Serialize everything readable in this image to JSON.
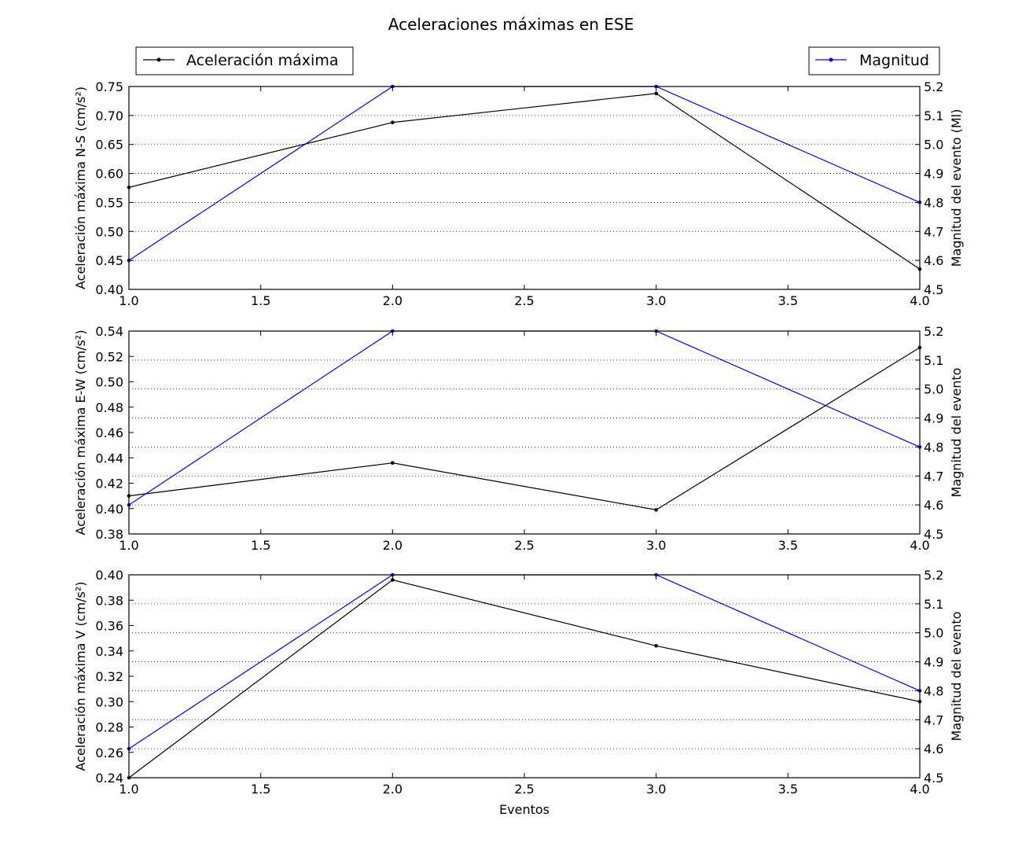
{
  "chart_data": {
    "type": "line",
    "title": "Aceleraciones máximas en ESE",
    "xlabel": "Eventos",
    "legend": [
      {
        "name": "Aceleración máxima",
        "color": "#000000",
        "placement": "top-left"
      },
      {
        "name": "Magnitud",
        "color": "#0000ff",
        "placement": "top-right"
      }
    ],
    "x": [
      1,
      2,
      3,
      4
    ],
    "xlim": [
      1.0,
      4.0
    ],
    "xticks": [
      "1.0",
      "1.5",
      "2.0",
      "2.5",
      "3.0",
      "3.5",
      "4.0"
    ],
    "grid": "dotted horizontal on right axis",
    "subplots": [
      {
        "ylabel": "Aceleración máxima N-S (cm/s²)",
        "ylabel_right": "Magnitud del evento (Ml)",
        "ylim": [
          0.4,
          0.75
        ],
        "ylim_right": [
          4.5,
          5.2
        ],
        "yticks": [
          "0.40",
          "0.45",
          "0.50",
          "0.55",
          "0.60",
          "0.65",
          "0.70",
          "0.75"
        ],
        "yticks_right": [
          "4.5",
          "4.6",
          "4.7",
          "4.8",
          "4.9",
          "5.0",
          "5.1",
          "5.2"
        ],
        "series": [
          {
            "name": "Aceleración máxima",
            "axis": "left",
            "color": "#000000",
            "values": [
              0.576,
              0.688,
              0.738,
              0.435
            ]
          },
          {
            "name": "Magnitud",
            "axis": "right",
            "color": "#0000ff",
            "values": [
              4.6,
              5.2,
              5.2,
              4.8
            ]
          }
        ]
      },
      {
        "ylabel": "Aceleración máxima E-W (cm/s²)",
        "ylabel_right": "Magnitud del evento",
        "ylim": [
          0.38,
          0.54
        ],
        "ylim_right": [
          4.5,
          5.2
        ],
        "yticks": [
          "0.38",
          "0.40",
          "0.42",
          "0.44",
          "0.46",
          "0.48",
          "0.50",
          "0.52",
          "0.54"
        ],
        "yticks_right": [
          "4.5",
          "4.6",
          "4.7",
          "4.8",
          "4.9",
          "5.0",
          "5.1",
          "5.2"
        ],
        "series": [
          {
            "name": "Aceleración máxima",
            "axis": "left",
            "color": "#000000",
            "values": [
              0.41,
              0.436,
              0.399,
              0.527
            ]
          },
          {
            "name": "Magnitud",
            "axis": "right",
            "color": "#0000ff",
            "values": [
              4.6,
              5.2,
              5.2,
              4.8
            ]
          }
        ]
      },
      {
        "ylabel": "Aceleración máxima V (cm/s²)",
        "ylabel_right": "Magnitud del evento",
        "ylim": [
          0.24,
          0.4
        ],
        "ylim_right": [
          4.5,
          5.2
        ],
        "yticks": [
          "0.24",
          "0.26",
          "0.28",
          "0.30",
          "0.32",
          "0.34",
          "0.36",
          "0.38",
          "0.40"
        ],
        "yticks_right": [
          "4.5",
          "4.6",
          "4.7",
          "4.8",
          "4.9",
          "5.0",
          "5.1",
          "5.2"
        ],
        "series": [
          {
            "name": "Aceleración máxima",
            "axis": "left",
            "color": "#000000",
            "values": [
              0.24,
              0.396,
              0.344,
              0.3
            ]
          },
          {
            "name": "Magnitud",
            "axis": "right",
            "color": "#0000ff",
            "values": [
              4.6,
              5.2,
              5.2,
              4.8
            ]
          }
        ]
      }
    ]
  }
}
